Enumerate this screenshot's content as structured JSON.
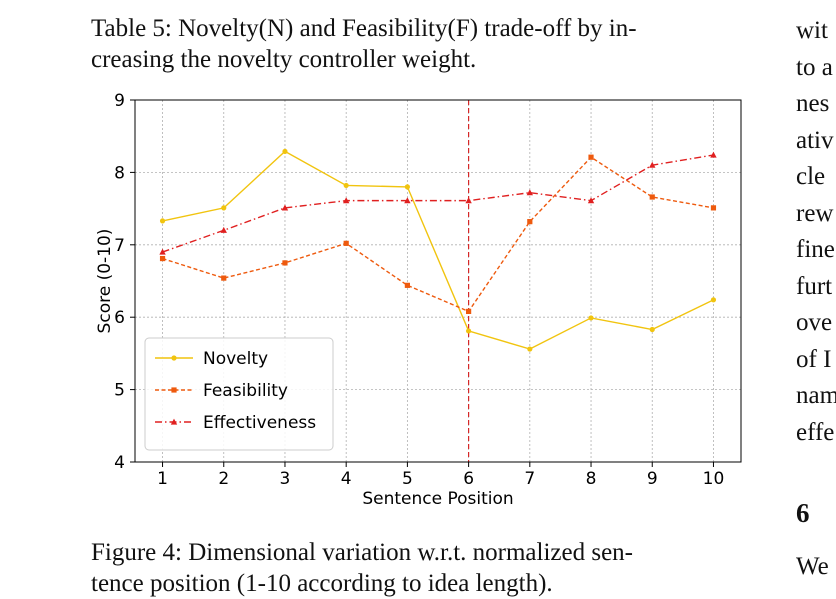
{
  "table_caption": {
    "line1": "Table 5: Novelty(N) and Feasibility(F) trade-off by in-",
    "line2": "creasing the novelty controller weight."
  },
  "figure_caption": {
    "line1": "Figure 4: Dimensional variation w.r.t. normalized sen-",
    "line2": "tence position (1-10 according to idea length)."
  },
  "right_column": {
    "lines": [
      "wit",
      "to a",
      "nes",
      "ativ",
      "cle",
      "rew",
      "fine",
      "furt",
      "ove",
      "of I",
      "nam",
      "effe"
    ],
    "section_number": "6",
    "last_line": "We"
  },
  "chart_data": {
    "type": "line",
    "xlabel": "Sentence Position",
    "ylabel": "Score (0-10)",
    "x": [
      1,
      2,
      3,
      4,
      5,
      6,
      7,
      8,
      9,
      10
    ],
    "xlim": [
      0.55,
      10.45
    ],
    "ylim": [
      4,
      9
    ],
    "yticks": [
      4,
      5,
      6,
      7,
      8,
      9
    ],
    "grid": true,
    "legend_position": "lower-left",
    "vline": {
      "x": 6,
      "color": "#d62728"
    },
    "series": [
      {
        "name": "Novelty",
        "values": [
          7.33,
          7.51,
          8.29,
          7.82,
          7.8,
          5.81,
          5.56,
          5.99,
          5.83,
          6.24
        ],
        "color": "#f1c40f",
        "style": "solid",
        "marker": "circle"
      },
      {
        "name": "Feasibility",
        "values": [
          6.81,
          6.54,
          6.75,
          7.02,
          6.44,
          6.08,
          7.32,
          8.21,
          7.66,
          7.51
        ],
        "color": "#ee5a0e",
        "style": "dashed",
        "marker": "square"
      },
      {
        "name": "Effectiveness",
        "values": [
          6.9,
          7.2,
          7.51,
          7.61,
          7.61,
          7.61,
          7.72,
          7.61,
          8.1,
          8.24
        ],
        "color": "#e02020",
        "style": "dashdot",
        "marker": "triangle"
      }
    ]
  }
}
